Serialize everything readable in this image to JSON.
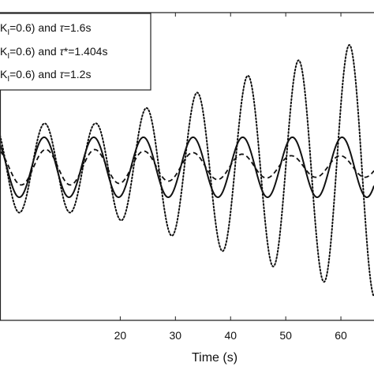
{
  "chart_data": {
    "type": "line",
    "xlabel": "Time (s)",
    "ylabel": "",
    "xlim": [
      -1.8,
      66.0
    ],
    "ylim": [
      -1.0,
      1.0
    ],
    "xticks": [
      20,
      30,
      40,
      50,
      60
    ],
    "grid": false,
    "legend_position": "top-left",
    "series": [
      {
        "label_parts": [
          "K",
          "I",
          "=0.6) and ",
          "τ",
          "=1.6s"
        ],
        "style": "dotted",
        "color": "#111111",
        "period": 9.2,
        "peak_times": [
          15.5,
          24.7,
          33.9,
          43.1,
          52.3,
          61.5
        ],
        "peak_values": [
          0.28,
          0.38,
          0.48,
          0.59,
          0.69,
          0.79
        ],
        "trough_values": [
          -0.3,
          -0.4,
          -0.5,
          -0.6,
          -0.7,
          -0.8
        ]
      },
      {
        "label_parts": [
          "K",
          "I",
          "=0.6) and ",
          "τ",
          "*=1.404s"
        ],
        "style": "solid",
        "color": "#111111",
        "period": 9.0,
        "peak_times": [
          15.2,
          24.2,
          33.2,
          42.2,
          51.2,
          60.2
        ],
        "peak_values": [
          0.19,
          0.19,
          0.19,
          0.19,
          0.19,
          0.19
        ],
        "trough_values": [
          -0.2,
          -0.2,
          -0.2,
          -0.2,
          -0.2,
          -0.2
        ]
      },
      {
        "label_parts": [
          "K",
          "I",
          "=0.6) and ",
          "τ",
          "=1.2s"
        ],
        "style": "dashed",
        "color": "#111111",
        "period": 8.9,
        "peak_times": [
          15.4,
          24.3,
          33.2,
          42.1,
          51.0,
          59.9
        ],
        "peak_values": [
          0.11,
          0.1,
          0.09,
          0.08,
          0.07,
          0.07
        ],
        "trough_values": [
          -0.12,
          -0.1,
          -0.09,
          -0.08,
          -0.07,
          -0.07
        ]
      }
    ]
  }
}
